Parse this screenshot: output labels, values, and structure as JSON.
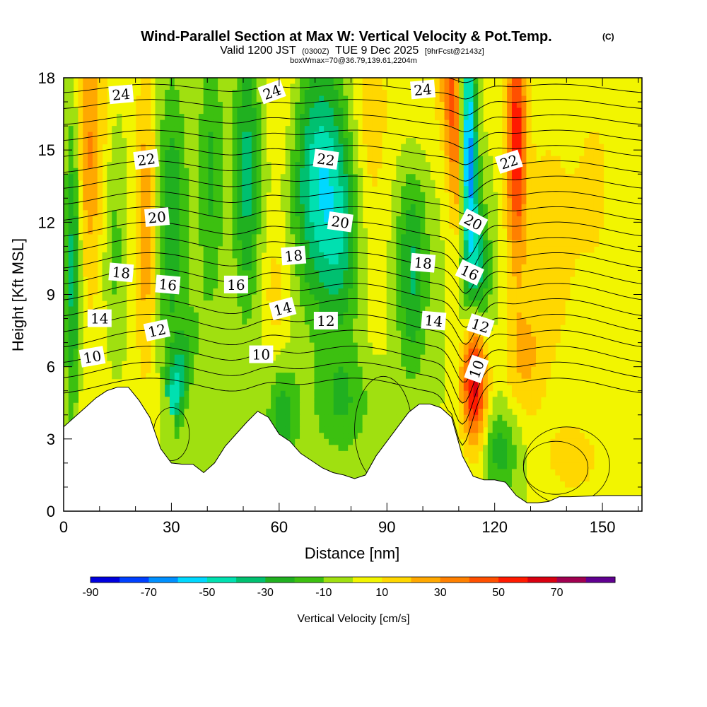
{
  "chart_data": {
    "type": "heatmap",
    "title": "Wind-Parallel Section at Max W: Vertical Velocity & Pot.Temp.",
    "title_mark": "(C)",
    "subtitle": {
      "part1": "Valid 1200 JST",
      "part2": "(0300Z)",
      "part3": "TUE 9 Dec 2025",
      "part4": "[9hrFcst@2143z]"
    },
    "subtitle2": "boxWmax=70@36.79,139.61,2204m",
    "xlabel": "Distance [nm]",
    "ylabel": "Height [Kft MSL]",
    "xlim": [
      0,
      161
    ],
    "ylim": [
      0,
      18
    ],
    "x_ticks": [
      "0",
      "30",
      "60",
      "90",
      "120",
      "150"
    ],
    "y_ticks": [
      "0",
      "3",
      "6",
      "9",
      "12",
      "15",
      "18"
    ],
    "colorbar": {
      "label": "Vertical Velocity [cm/s]",
      "tick_labels": [
        "-90",
        "-70",
        "-50",
        "-30",
        "-10",
        "10",
        "30",
        "50",
        "70"
      ],
      "levels": [
        -90,
        -80,
        -70,
        -60,
        -50,
        -40,
        -30,
        -20,
        -10,
        0,
        10,
        20,
        30,
        40,
        50,
        60,
        70,
        80
      ],
      "colors": [
        "#0000dd",
        "#0040ff",
        "#0090ff",
        "#00d8ff",
        "#00e0b0",
        "#00c070",
        "#20b020",
        "#3cc010",
        "#a0e010",
        "#f2f500",
        "#ffd700",
        "#ffa800",
        "#ff8000",
        "#ff5000",
        "#ff1a00",
        "#d80010",
        "#a00050",
        "#600090"
      ]
    },
    "theta_contour_labels": [
      "24",
      "24",
      "24",
      "22",
      "22",
      "22",
      "20",
      "20",
      "20",
      "18",
      "18",
      "18",
      "16",
      "16",
      "16",
      "14",
      "14",
      "14",
      "12",
      "12",
      "12",
      "10",
      "10",
      "10"
    ],
    "terrain_kft": [
      {
        "x": 0,
        "y": 3.5
      },
      {
        "x": 3,
        "y": 3.9
      },
      {
        "x": 6,
        "y": 4.3
      },
      {
        "x": 9,
        "y": 4.7
      },
      {
        "x": 12,
        "y": 5.0
      },
      {
        "x": 15,
        "y": 5.15
      },
      {
        "x": 18,
        "y": 5.15
      },
      {
        "x": 21,
        "y": 4.6
      },
      {
        "x": 24,
        "y": 3.9
      },
      {
        "x": 27,
        "y": 2.6
      },
      {
        "x": 30,
        "y": 2.0
      },
      {
        "x": 33,
        "y": 1.95
      },
      {
        "x": 36,
        "y": 1.95
      },
      {
        "x": 39,
        "y": 1.6
      },
      {
        "x": 42,
        "y": 2.0
      },
      {
        "x": 45,
        "y": 2.7
      },
      {
        "x": 48,
        "y": 3.2
      },
      {
        "x": 51,
        "y": 3.7
      },
      {
        "x": 54,
        "y": 4.15
      },
      {
        "x": 57,
        "y": 3.9
      },
      {
        "x": 60,
        "y": 3.2
      },
      {
        "x": 63,
        "y": 2.9
      },
      {
        "x": 66,
        "y": 2.4
      },
      {
        "x": 69,
        "y": 2.1
      },
      {
        "x": 72,
        "y": 1.8
      },
      {
        "x": 75,
        "y": 1.6
      },
      {
        "x": 78,
        "y": 1.5
      },
      {
        "x": 81,
        "y": 1.35
      },
      {
        "x": 84,
        "y": 1.5
      },
      {
        "x": 87,
        "y": 2.3
      },
      {
        "x": 90,
        "y": 2.9
      },
      {
        "x": 93,
        "y": 3.5
      },
      {
        "x": 96,
        "y": 4.1
      },
      {
        "x": 99,
        "y": 4.45
      },
      {
        "x": 102,
        "y": 4.45
      },
      {
        "x": 105,
        "y": 4.3
      },
      {
        "x": 108,
        "y": 3.9
      },
      {
        "x": 111,
        "y": 2.3
      },
      {
        "x": 114,
        "y": 1.45
      },
      {
        "x": 117,
        "y": 1.3
      },
      {
        "x": 120,
        "y": 1.3
      },
      {
        "x": 123,
        "y": 1.2
      },
      {
        "x": 126,
        "y": 0.65
      },
      {
        "x": 129,
        "y": 0.35
      },
      {
        "x": 132,
        "y": 0.35
      },
      {
        "x": 135,
        "y": 0.4
      },
      {
        "x": 138,
        "y": 0.6
      },
      {
        "x": 141,
        "y": 0.6
      },
      {
        "x": 150,
        "y": 0.65
      },
      {
        "x": 161,
        "y": 0.65
      }
    ]
  }
}
